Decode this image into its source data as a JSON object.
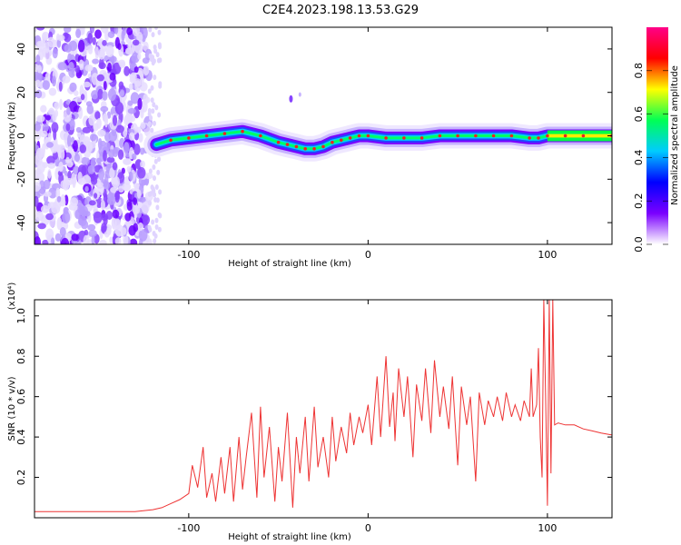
{
  "title": "C2E4.2023.198.13.53.G29",
  "colors": {
    "snr_line": "#ee3333",
    "ridge": "#ee2222",
    "colormap": [
      "#ffffff",
      "#7a00ff",
      "#0000ff",
      "#00ccff",
      "#00ff55",
      "#ffff00",
      "#ff0000",
      "#ff0088"
    ]
  },
  "chart_data": [
    {
      "type": "heatmap",
      "xlabel": "Height of straight line (km)",
      "ylabel": "Frequency (Hz)",
      "xlim": [
        -186,
        136
      ],
      "ylim": [
        -50,
        50
      ],
      "xticks": [
        -100,
        0,
        100
      ],
      "yticks": [
        -40,
        -20,
        0,
        20,
        40
      ],
      "grid": false,
      "colorbar": {
        "label": "Normalized spectral amplitude",
        "range": [
          0.0,
          1.0
        ],
        "ticks": [
          "0.0",
          "0.2",
          "0.4",
          "0.6",
          "0.8"
        ],
        "tick_values": [
          0.0,
          0.2,
          0.4,
          0.6,
          0.8
        ]
      },
      "ridge": {
        "x": [
          -118,
          -110,
          -100,
          -90,
          -80,
          -70,
          -60,
          -50,
          -45,
          -40,
          -35,
          -30,
          -25,
          -20,
          -15,
          -10,
          -5,
          0,
          10,
          20,
          30,
          40,
          50,
          60,
          70,
          80,
          90,
          95,
          100,
          110,
          120,
          136
        ],
        "y": [
          -4,
          -2,
          -1,
          0,
          1,
          2,
          0,
          -3,
          -4,
          -5,
          -6,
          -6,
          -5,
          -3,
          -2,
          -1,
          0,
          0,
          -1,
          -1,
          -1,
          0,
          0,
          0,
          0,
          0,
          -1,
          -1,
          0,
          0,
          0,
          0
        ]
      }
    },
    {
      "type": "line",
      "xlabel": "Height of straight line (km)",
      "ylabel": "SNR (10 * v/v)",
      "y_multiplier": "(x10⁴)",
      "xlim": [
        -186,
        136
      ],
      "ylim": [
        0,
        1.08
      ],
      "xticks": [
        -100,
        0,
        100
      ],
      "yticks": [
        0.2,
        0.4,
        0.6,
        0.8,
        1.0
      ],
      "grid": false,
      "series": [
        {
          "x": [
            -186,
            -170,
            -150,
            -130,
            -120,
            -115,
            -110,
            -105,
            -100,
            -98,
            -95,
            -92,
            -90,
            -87,
            -85,
            -82,
            -80,
            -77,
            -75,
            -72,
            -70,
            -68,
            -65,
            -62,
            -60,
            -58,
            -55,
            -52,
            -50,
            -48,
            -45,
            -42,
            -40,
            -38,
            -35,
            -33,
            -30,
            -28,
            -25,
            -22,
            -20,
            -18,
            -15,
            -12,
            -10,
            -8,
            -5,
            -3,
            0,
            2,
            5,
            7,
            10,
            12,
            14,
            15,
            17,
            20,
            22,
            25,
            27,
            30,
            32,
            35,
            37,
            40,
            42,
            45,
            47,
            50,
            52,
            55,
            57,
            60,
            62,
            65,
            67,
            70,
            72,
            75,
            77,
            80,
            82,
            85,
            87,
            90,
            91,
            92,
            94,
            95,
            96,
            97,
            98,
            99,
            100,
            101,
            102,
            103,
            104,
            106,
            110,
            115,
            120,
            125,
            130,
            136
          ],
          "y": [
            0.03,
            0.03,
            0.03,
            0.03,
            0.04,
            0.05,
            0.07,
            0.09,
            0.12,
            0.26,
            0.15,
            0.35,
            0.1,
            0.22,
            0.08,
            0.3,
            0.12,
            0.35,
            0.08,
            0.4,
            0.14,
            0.3,
            0.52,
            0.1,
            0.55,
            0.2,
            0.45,
            0.08,
            0.35,
            0.18,
            0.52,
            0.05,
            0.4,
            0.22,
            0.5,
            0.18,
            0.55,
            0.25,
            0.4,
            0.2,
            0.5,
            0.28,
            0.45,
            0.32,
            0.52,
            0.36,
            0.5,
            0.42,
            0.56,
            0.36,
            0.7,
            0.4,
            0.8,
            0.45,
            0.62,
            0.38,
            0.74,
            0.5,
            0.7,
            0.3,
            0.66,
            0.48,
            0.74,
            0.42,
            0.78,
            0.5,
            0.65,
            0.44,
            0.7,
            0.26,
            0.65,
            0.46,
            0.6,
            0.18,
            0.62,
            0.46,
            0.58,
            0.5,
            0.6,
            0.48,
            0.62,
            0.5,
            0.56,
            0.48,
            0.58,
            0.5,
            0.74,
            0.5,
            0.56,
            0.84,
            0.4,
            0.2,
            1.08,
            0.6,
            0.06,
            1.08,
            0.22,
            1.08,
            0.46,
            0.47,
            0.46,
            0.46,
            0.44,
            0.43,
            0.42,
            0.41
          ]
        }
      ]
    }
  ]
}
